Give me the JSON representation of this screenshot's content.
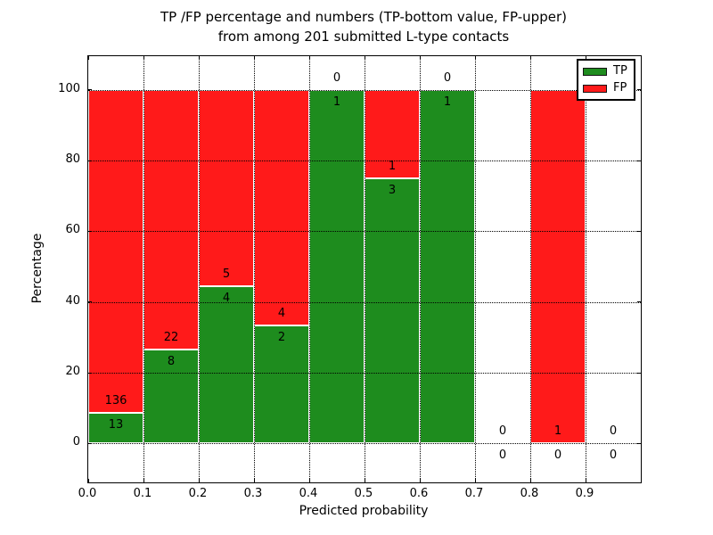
{
  "figure": {
    "title_line1": "TP /FP percentage and numbers (TP-bottom value, FP-upper)",
    "title_line2": "from among 201 submitted L-type contacts",
    "xlabel": "Predicted probability",
    "ylabel": "Percentage"
  },
  "legend": {
    "position": "upper-right",
    "entries": [
      {
        "label": "TP",
        "color": "#1e8c1e"
      },
      {
        "label": "FP",
        "color": "#ff1a1a"
      }
    ]
  },
  "colors": {
    "tp": "#1e8c1e",
    "fp": "#ff1a1a",
    "text": "#000000",
    "grid": "#000000",
    "background": "#ffffff"
  },
  "chart_data": {
    "type": "bar",
    "subtype": "stacked-100-percent",
    "title": "TP /FP percentage and numbers (TP-bottom value, FP-upper)\nfrom among 201 submitted L-type contacts",
    "xlabel": "Predicted probability",
    "ylabel": "Percentage",
    "xlim": [
      0.0,
      1.0
    ],
    "ylim": [
      -11,
      109.5
    ],
    "xticks": [
      0.0,
      0.1,
      0.2,
      0.3,
      0.4,
      0.5,
      0.6,
      0.7,
      0.8,
      0.9
    ],
    "xtick_labels": [
      "0.0",
      "0.1",
      "0.2",
      "0.3",
      "0.4",
      "0.5",
      "0.6",
      "0.7",
      "0.8",
      "0.9"
    ],
    "yticks": [
      0,
      20,
      40,
      60,
      80,
      100
    ],
    "ytick_labels": [
      "0",
      "20",
      "40",
      "60",
      "80",
      "100"
    ],
    "grid": {
      "visible": true,
      "style": "dotted",
      "color": "#000000",
      "drawn_on_top": true
    },
    "series": [
      {
        "name": "TP",
        "color": "#1e8c1e"
      },
      {
        "name": "FP",
        "color": "#ff1a1a"
      }
    ],
    "total_contacts": 201,
    "bins": [
      {
        "x_range": [
          0.0,
          0.1
        ],
        "tp": 13,
        "fp": 136,
        "tp_percent": 8.7,
        "fp_percent": 91.3
      },
      {
        "x_range": [
          0.1,
          0.2
        ],
        "tp": 8,
        "fp": 22,
        "tp_percent": 26.7,
        "fp_percent": 73.3
      },
      {
        "x_range": [
          0.2,
          0.3
        ],
        "tp": 4,
        "fp": 5,
        "tp_percent": 44.4,
        "fp_percent": 55.6
      },
      {
        "x_range": [
          0.3,
          0.4
        ],
        "tp": 2,
        "fp": 4,
        "tp_percent": 33.3,
        "fp_percent": 66.7
      },
      {
        "x_range": [
          0.4,
          0.5
        ],
        "tp": 1,
        "fp": 0,
        "tp_percent": 100.0,
        "fp_percent": 0.0
      },
      {
        "x_range": [
          0.5,
          0.6
        ],
        "tp": 3,
        "fp": 1,
        "tp_percent": 75.0,
        "fp_percent": 25.0
      },
      {
        "x_range": [
          0.6,
          0.7
        ],
        "tp": 1,
        "fp": 0,
        "tp_percent": 100.0,
        "fp_percent": 0.0
      },
      {
        "x_range": [
          0.7,
          0.8
        ],
        "tp": 0,
        "fp": 0,
        "tp_percent": 0.0,
        "fp_percent": 0.0
      },
      {
        "x_range": [
          0.8,
          0.9
        ],
        "tp": 0,
        "fp": 1,
        "tp_percent": 0.0,
        "fp_percent": 100.0
      },
      {
        "x_range": [
          0.9,
          1.0
        ],
        "tp": 0,
        "fp": 0,
        "tp_percent": 0.0,
        "fp_percent": 0.0
      }
    ]
  }
}
